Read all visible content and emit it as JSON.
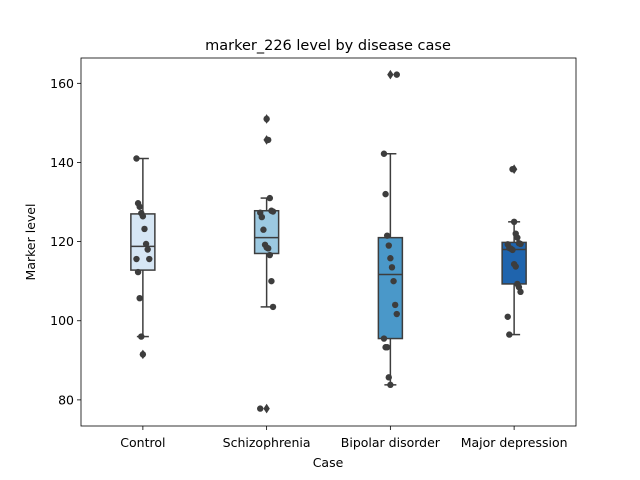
{
  "chart_data": {
    "type": "box",
    "title": "marker_226 level by disease case",
    "xlabel": "Case",
    "ylabel": "Marker level",
    "ylim": [
      73.4,
      166.4
    ],
    "yticks": [
      80,
      100,
      120,
      140,
      160
    ],
    "grid": false,
    "categories": [
      "Control",
      "Schizophrenia",
      "Bipolar disorder",
      "Major depression"
    ],
    "colors": [
      "#d6e6f4",
      "#9cc9e1",
      "#4a98c9",
      "#1f64ad"
    ],
    "boxes": [
      {
        "q1": 112.8,
        "median": 118.8,
        "q3": 127.0,
        "whisker_low": 96.0,
        "whisker_high": 141.0,
        "outliers": [
          91.5
        ]
      },
      {
        "q1": 117.0,
        "median": 121.0,
        "q3": 127.8,
        "whisker_low": 103.5,
        "whisker_high": 131.0,
        "outliers": [
          151.0,
          145.7,
          77.8
        ]
      },
      {
        "q1": 95.5,
        "median": 111.7,
        "q3": 121.0,
        "whisker_low": 83.8,
        "whisker_high": 142.2,
        "outliers": [
          162.2
        ]
      },
      {
        "q1": 109.3,
        "median": 118.0,
        "q3": 119.8,
        "whisker_low": 96.5,
        "whisker_high": 125.0,
        "outliers": [
          138.3
        ]
      }
    ],
    "points": [
      [
        141.0,
        129.7,
        128.8,
        127.2,
        126.4,
        123.2,
        119.4,
        118.0,
        115.6,
        115.6,
        112.3,
        105.7,
        96.0,
        91.5
      ],
      [
        151.0,
        145.7,
        131.0,
        127.8,
        127.6,
        127.3,
        126.2,
        123.0,
        119.2,
        118.5,
        118.3,
        116.6,
        110.0,
        103.5,
        77.8
      ],
      [
        162.2,
        142.2,
        132.0,
        121.5,
        119.0,
        115.8,
        113.5,
        110.0,
        104.0,
        101.7,
        95.5,
        93.3,
        93.3,
        85.7,
        83.8
      ],
      [
        138.3,
        125.0,
        122.0,
        121.0,
        119.6,
        119.4,
        119.3,
        118.4,
        118.2,
        117.9,
        114.3,
        113.7,
        109.3,
        108.5,
        107.3,
        101.0,
        96.5
      ]
    ]
  }
}
